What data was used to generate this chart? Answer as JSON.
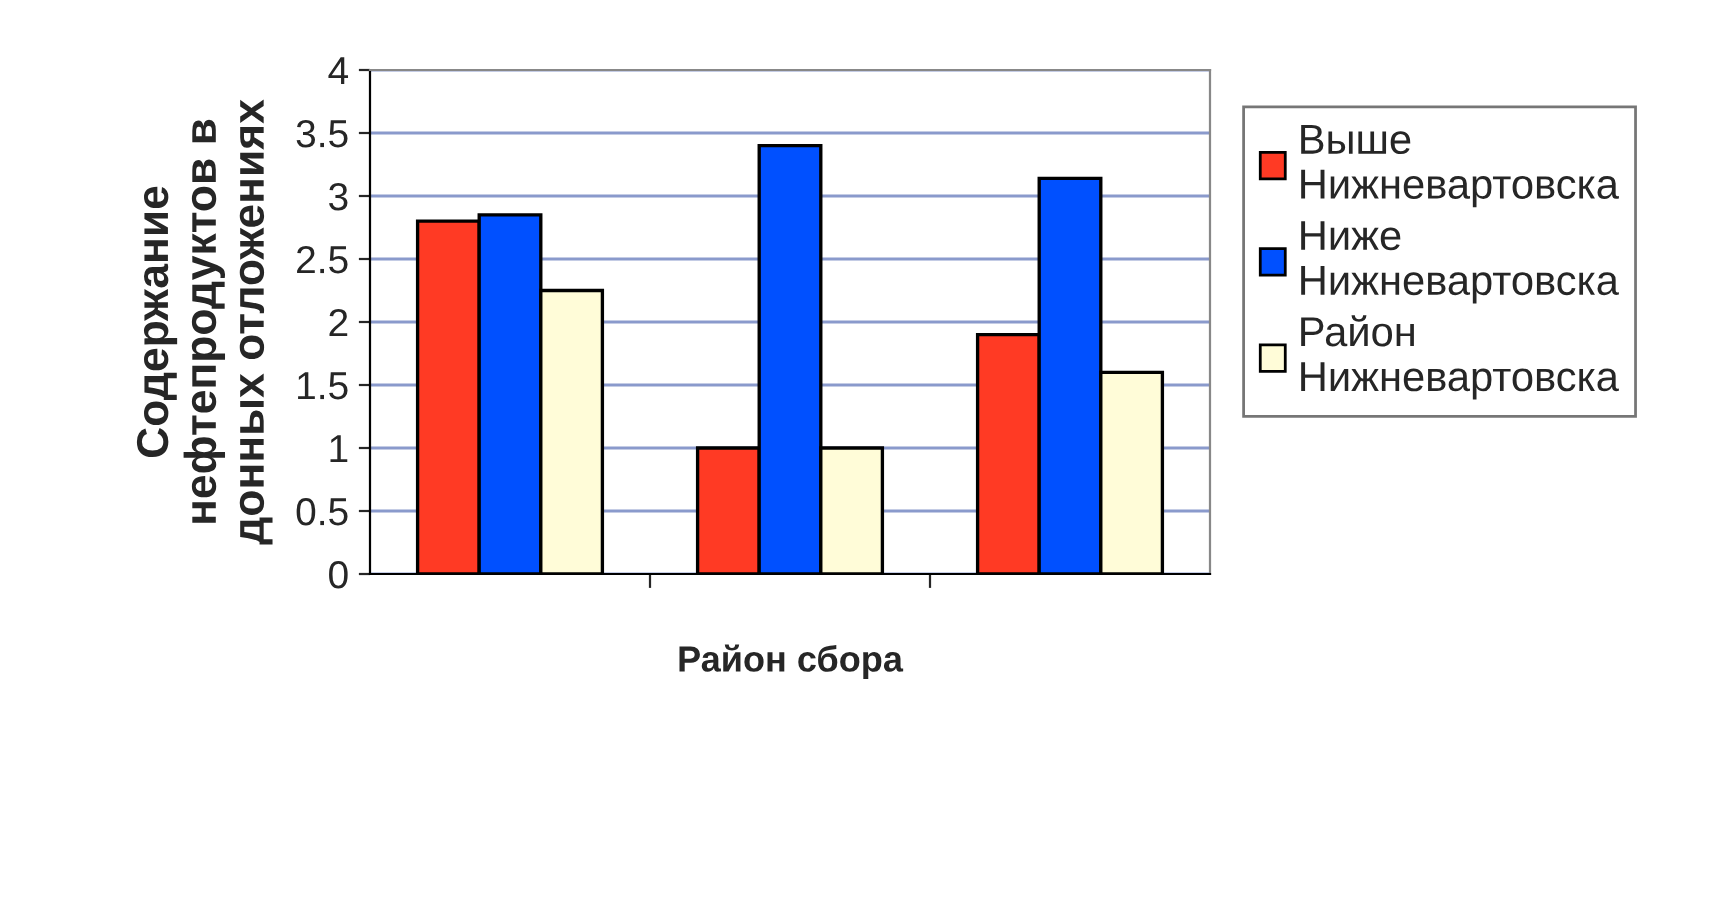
{
  "chart_data": {
    "type": "bar",
    "xlabel": "Район сбора",
    "ylabel": "Содержание\nнефтепродуктов в\nдонных отложениях",
    "categories": [
      null,
      null,
      null
    ],
    "series": [
      {
        "name": "Выше\nНижневартовска",
        "color": "#ff3a24",
        "values": [
          2.8,
          1.0,
          1.9
        ]
      },
      {
        "name": "Ниже\nНижневартовска",
        "color": "#0050ff",
        "values": [
          2.85,
          3.4,
          3.14
        ]
      },
      {
        "name": "Район\nНижневартовска",
        "color": "#fffcd8",
        "values": [
          2.25,
          1.0,
          1.6
        ]
      }
    ],
    "ylim": [
      0,
      4
    ],
    "yticks": [
      0,
      0.5,
      1,
      1.5,
      2,
      2.5,
      3,
      3.5,
      4
    ],
    "grid": "y",
    "legend": "right"
  }
}
